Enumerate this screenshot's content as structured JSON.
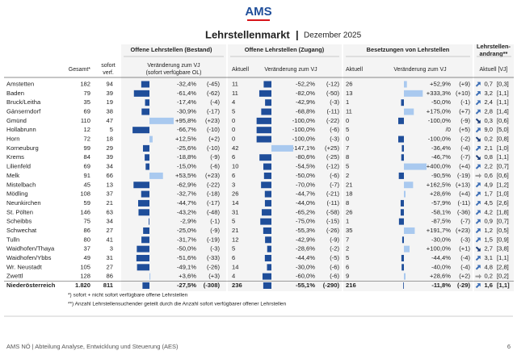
{
  "logo": "AMS",
  "title_parts": [
    "Lehrstellenmarkt",
    "|",
    "Dezember 2025"
  ],
  "groups": [
    "Offene Lehrstellen (Bestand)",
    "Offene Lehrstellen (Zugang)",
    "Besetzungen von Lehrstellen",
    [
      "Lehrstellen-",
      "andrang**"
    ]
  ],
  "subheaders": [
    "Gesamt*",
    [
      "sofort",
      "verf."
    ],
    [
      "Veränderung zum VJ",
      "(sofort verfügbare OL)"
    ],
    "Aktuell",
    "Veränderung zum VJ",
    "Aktuell",
    "Veränderung zum VJ",
    "Aktuell [VJ]"
  ],
  "table": {
    "rows": [
      [
        "Amstetten",
        "182",
        "94",
        "-32,4%",
        "(-45)",
        "11",
        "-52,2%",
        "(-12)",
        "26",
        "+52,9%",
        "(+9)",
        "0,7",
        "[0,3]"
      ],
      [
        "Baden",
        "79",
        "39",
        "-61,4%",
        "(-62)",
        "11",
        "-82,0%",
        "(-50)",
        "13",
        "+333,3%",
        "(+10)",
        "3,2",
        "[1,1]"
      ],
      [
        "Bruck/Leitha",
        "35",
        "19",
        "-17,4%",
        "(-4)",
        "4",
        "-42,9%",
        "(-3)",
        "1",
        "-50,0%",
        "(-1)",
        "2,4",
        "[1,1]"
      ],
      [
        "Gänserndorf",
        "69",
        "38",
        "-30,9%",
        "(-17)",
        "5",
        "-68,8%",
        "(-11)",
        "11",
        "+175,0%",
        "(+7)",
        "2,8",
        "[1,4]"
      ],
      [
        "Gmünd",
        "110",
        "47",
        "+95,8%",
        "(+23)",
        "0",
        "-100,0%",
        "(-22)",
        "0",
        "-100,0%",
        "(-9)",
        "0,3",
        "[0,6]"
      ],
      [
        "Hollabrunn",
        "12",
        "5",
        "-66,7%",
        "(-10)",
        "0",
        "-100,0%",
        "(-6)",
        "5",
        "/0",
        "(+5)",
        "9,0",
        "[5,0]"
      ],
      [
        "Horn",
        "72",
        "18",
        "+12,5%",
        "(+2)",
        "0",
        "-100,0%",
        "(-3)",
        "0",
        "-100,0%",
        "(-2)",
        "0,2",
        "[0,8]"
      ],
      [
        "Korneuburg",
        "99",
        "29",
        "-25,6%",
        "(-10)",
        "42",
        "+147,1%",
        "(+25)",
        "7",
        "-36,4%",
        "(-4)",
        "2,1",
        "[1,0]"
      ],
      [
        "Krems",
        "84",
        "39",
        "-18,8%",
        "(-9)",
        "6",
        "-80,6%",
        "(-25)",
        "8",
        "-46,7%",
        "(-7)",
        "0,8",
        "[1,1]"
      ],
      [
        "Lilienfeld",
        "69",
        "34",
        "-15,0%",
        "(-6)",
        "10",
        "-54,5%",
        "(-12)",
        "5",
        "+400,0%",
        "(+4)",
        "2,2",
        "[0,7]"
      ],
      [
        "Melk",
        "91",
        "66",
        "+53,5%",
        "(+23)",
        "6",
        "-50,0%",
        "(-6)",
        "2",
        "-90,5%",
        "(-19)",
        "0,6",
        "[0,6]"
      ],
      [
        "Mistelbach",
        "45",
        "13",
        "-62,9%",
        "(-22)",
        "3",
        "-70,0%",
        "(-7)",
        "21",
        "+162,5%",
        "(+13)",
        "4,9",
        "[1,2]"
      ],
      [
        "Mödling",
        "108",
        "37",
        "-32,7%",
        "(-18)",
        "26",
        "-44,7%",
        "(-21)",
        "18",
        "+28,6%",
        "(+4)",
        "1,7",
        "[1,0]"
      ],
      [
        "Neunkirchen",
        "59",
        "21",
        "-44,7%",
        "(-17)",
        "14",
        "-44,0%",
        "(-11)",
        "8",
        "-57,9%",
        "(-11)",
        "4,5",
        "[2,6]"
      ],
      [
        "St. Pölten",
        "146",
        "63",
        "-43,2%",
        "(-48)",
        "31",
        "-65,2%",
        "(-58)",
        "26",
        "-58,1%",
        "(-36)",
        "4,2",
        "[1,8]"
      ],
      [
        "Scheibbs",
        "75",
        "34",
        "-2,9%",
        "(-1)",
        "5",
        "-75,0%",
        "(-15)",
        "1",
        "-87,5%",
        "(-7)",
        "0,9",
        "[0,7]"
      ],
      [
        "Schwechat",
        "86",
        "27",
        "-25,0%",
        "(-9)",
        "21",
        "-55,3%",
        "(-26)",
        "35",
        "+191,7%",
        "(+23)",
        "1,2",
        "[0,5]"
      ],
      [
        "Tulln",
        "80",
        "41",
        "-31,7%",
        "(-19)",
        "12",
        "-42,9%",
        "(-9)",
        "7",
        "-30,0%",
        "(-3)",
        "1,5",
        "[0,9]"
      ],
      [
        "Waidhofen/Thaya",
        "37",
        "3",
        "-50,0%",
        "(-3)",
        "5",
        "-28,6%",
        "(-2)",
        "2",
        "+100,0%",
        "(+1)",
        "2,7",
        "[3,8]"
      ],
      [
        "Waidhofen/Ybbs",
        "49",
        "31",
        "-51,6%",
        "(-33)",
        "6",
        "-44,4%",
        "(-5)",
        "5",
        "-44,4%",
        "(-4)",
        "3,1",
        "[1,1]"
      ],
      [
        "Wr. Neustadt",
        "105",
        "27",
        "-49,1%",
        "(-26)",
        "14",
        "-30,0%",
        "(-6)",
        "6",
        "-40,0%",
        "(-4)",
        "4,8",
        "[2,8]"
      ],
      [
        "Zwettl",
        "128",
        "86",
        "+3,6%",
        "(+3)",
        "4",
        "-60,0%",
        "(-6)",
        "9",
        "+28,6%",
        "(+2)",
        "0,2",
        "[0,2]"
      ],
      [
        "Niederösterreich",
        "1.820",
        "811",
        "-27,5%",
        "(-308)",
        "236",
        "-55,1%",
        "(-290)",
        "216",
        "-11,8%",
        "(-29)",
        "1,6",
        "[1,1]"
      ]
    ],
    "bars": [
      [
        -32.4,
        -52.2,
        52.9
      ],
      [
        -61.4,
        -82.0,
        333.3
      ],
      [
        -17.4,
        -42.9,
        -50.0
      ],
      [
        -30.9,
        -68.8,
        175.0
      ],
      [
        95.8,
        -100.0,
        -100.0
      ],
      [
        -66.7,
        -100.0,
        null
      ],
      [
        12.5,
        -100.0,
        -100.0
      ],
      [
        -25.6,
        147.1,
        -36.4
      ],
      [
        -18.8,
        -80.6,
        -46.7
      ],
      [
        -15.0,
        -54.5,
        400.0
      ],
      [
        53.5,
        -50.0,
        -90.5
      ],
      [
        -62.9,
        -70.0,
        162.5
      ],
      [
        -32.7,
        -44.7,
        28.6
      ],
      [
        -44.7,
        -44.0,
        -57.9
      ],
      [
        -43.2,
        -65.2,
        -58.1
      ],
      [
        -2.9,
        -75.0,
        -87.5
      ],
      [
        -25.0,
        -55.3,
        191.7
      ],
      [
        -31.7,
        -42.9,
        -30.0
      ],
      [
        -50.0,
        -28.6,
        100.0
      ],
      [
        -51.6,
        -44.4,
        -44.4
      ],
      [
        -49.1,
        -30.0,
        -40.0
      ],
      [
        3.6,
        -60.0,
        28.6
      ],
      [
        -27.5,
        -55.1,
        -11.8
      ]
    ],
    "trends": [
      "up",
      "up",
      "up",
      "up",
      "down",
      "up",
      "down",
      "up",
      "down",
      "up",
      "flat",
      "up",
      "up",
      "up",
      "up",
      "up",
      "up",
      "up",
      "down",
      "up",
      "up",
      "flat",
      "up"
    ]
  },
  "footnotes": [
    "*) sofort + nicht sofort verfügbare offene Lehrstellen",
    "**) Anzahl Lehrstellensuchender geteilt durch die Anzahl sofort verfügbarer offener Lehrstellen"
  ],
  "footer": {
    "left": "AMS NÖ | Abteilung Analyse, Entwicklung und Steuerung (AES)",
    "page": "6"
  }
}
